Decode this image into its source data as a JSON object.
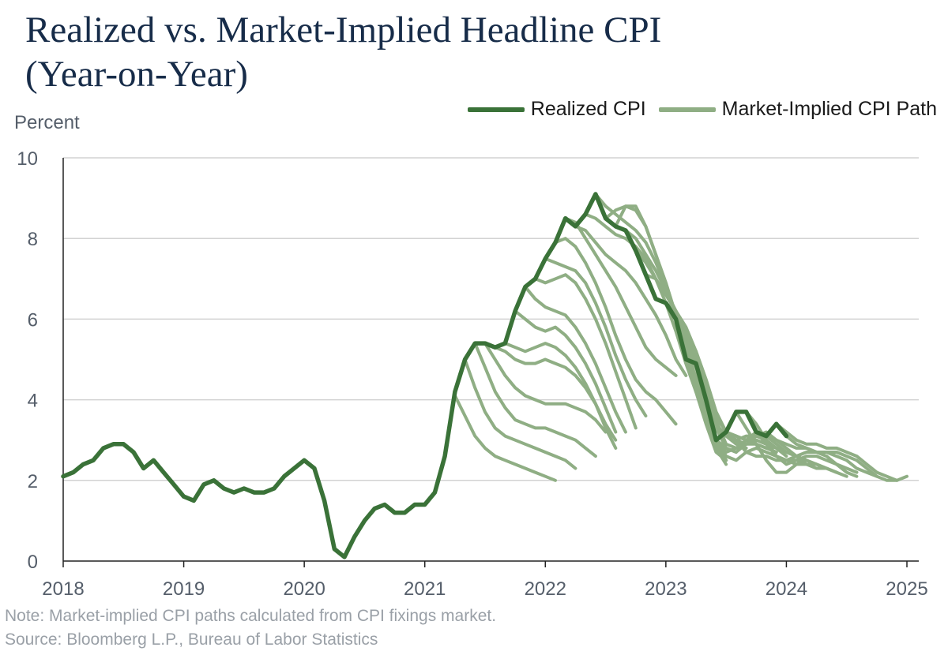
{
  "title_line1": "Realized vs. Market-Implied Headline CPI",
  "title_line2": "(Year-on-Year)",
  "colors": {
    "realized": "#3a7238",
    "implied": "#8fae84",
    "grid": "#d2d2d2",
    "title": "#172c49"
  },
  "legend": {
    "realized_label": "Realized CPI",
    "implied_label": "Market-Implied CPI Path"
  },
  "footer": {
    "note": "Note: Market-implied CPI paths calculated from CPI fixings market.",
    "source": "Source: Bloomberg L.P., Bureau of Labor Statistics"
  },
  "chart_data": {
    "type": "line",
    "title": "Realized vs. Market-Implied Headline CPI (Year-on-Year)",
    "ylabel": "Percent",
    "xlabel": "",
    "ylim": [
      0,
      10
    ],
    "yticks": [
      0,
      2,
      4,
      6,
      8,
      10
    ],
    "xlim": [
      2018.0,
      2025.1
    ],
    "xticks": [
      "2018",
      "2019",
      "2020",
      "2021",
      "2022",
      "2023",
      "2024",
      "2025"
    ],
    "grid": true,
    "legend_position": "top-right",
    "series": [
      {
        "name": "Realized CPI",
        "x_start": 2018.0,
        "step": 0.0833333,
        "values": [
          2.1,
          2.2,
          2.4,
          2.5,
          2.8,
          2.9,
          2.9,
          2.7,
          2.3,
          2.5,
          2.2,
          1.9,
          1.6,
          1.5,
          1.9,
          2.0,
          1.8,
          1.7,
          1.8,
          1.7,
          1.7,
          1.8,
          2.1,
          2.3,
          2.5,
          2.3,
          1.5,
          0.3,
          0.1,
          0.6,
          1.0,
          1.3,
          1.4,
          1.2,
          1.2,
          1.4,
          1.4,
          1.7,
          2.6,
          4.2,
          5.0,
          5.4,
          5.4,
          5.3,
          5.4,
          6.2,
          6.8,
          7.0,
          7.5,
          7.9,
          8.5,
          8.3,
          8.6,
          9.1,
          8.5,
          8.3,
          8.2,
          7.7,
          7.1,
          6.5,
          6.4,
          6.0,
          5.0,
          4.9,
          4.0,
          3.0,
          3.2,
          3.7,
          3.7,
          3.2,
          3.1,
          3.4,
          3.1
        ]
      }
    ],
    "implied_paths": [
      {
        "start": 2021.25,
        "values": [
          4.1,
          3.6,
          3.1,
          2.8,
          2.6,
          2.5,
          2.4,
          2.3,
          2.2,
          2.1,
          2.0
        ]
      },
      {
        "start": 2021.333,
        "values": [
          5.0,
          4.3,
          3.7,
          3.3,
          3.1,
          3.0,
          2.9,
          2.8,
          2.7,
          2.6,
          2.5,
          2.3
        ]
      },
      {
        "start": 2021.417,
        "values": [
          5.4,
          4.8,
          4.2,
          3.8,
          3.5,
          3.4,
          3.3,
          3.3,
          3.2,
          3.1,
          3.0,
          2.8,
          2.6
        ]
      },
      {
        "start": 2021.5,
        "values": [
          5.4,
          5.0,
          4.6,
          4.3,
          4.1,
          4.0,
          3.9,
          3.9,
          3.9,
          3.8,
          3.7,
          3.5,
          3.2
        ]
      },
      {
        "start": 2021.583,
        "values": [
          5.3,
          5.2,
          5.0,
          4.9,
          4.9,
          5.0,
          4.9,
          4.8,
          4.6,
          4.3,
          3.9,
          3.4,
          3.0
        ]
      },
      {
        "start": 2021.667,
        "values": [
          5.4,
          5.3,
          5.2,
          5.3,
          5.4,
          5.3,
          5.1,
          4.8,
          4.4,
          3.9,
          3.3,
          2.8
        ]
      },
      {
        "start": 2021.75,
        "values": [
          6.2,
          6.0,
          5.8,
          5.7,
          5.8,
          5.6,
          5.3,
          4.9,
          4.4,
          3.8,
          3.2
        ]
      },
      {
        "start": 2021.833,
        "values": [
          6.8,
          6.5,
          6.3,
          6.2,
          6.1,
          5.8,
          5.4,
          4.9,
          4.3,
          3.7,
          3.2
        ]
      },
      {
        "start": 2021.917,
        "values": [
          7.0,
          6.9,
          7.0,
          7.1,
          6.9,
          6.5,
          6.0,
          5.4,
          4.7,
          4.0,
          3.3
        ]
      },
      {
        "start": 2022.0,
        "values": [
          7.5,
          7.4,
          7.3,
          7.2,
          6.9,
          6.4,
          5.8,
          5.1,
          4.5,
          4.0,
          3.6
        ]
      },
      {
        "start": 2022.083,
        "values": [
          7.9,
          8.0,
          7.8,
          7.4,
          6.9,
          6.3,
          5.6,
          5.0,
          4.5,
          4.2,
          4.0,
          3.7,
          3.4
        ]
      },
      {
        "start": 2022.167,
        "values": [
          8.5,
          8.4,
          8.0,
          7.6,
          7.2,
          6.8,
          6.3,
          5.8,
          5.3,
          5.0,
          4.8,
          4.6
        ]
      },
      {
        "start": 2022.25,
        "values": [
          8.3,
          8.2,
          7.9,
          7.6,
          7.4,
          7.2,
          6.9,
          6.5,
          6.1,
          5.6,
          5.0,
          4.6
        ]
      },
      {
        "start": 2022.333,
        "values": [
          8.6,
          8.5,
          8.3,
          8.1,
          8.0,
          7.8,
          7.5,
          7.0,
          6.4,
          5.7,
          4.9,
          4.2,
          3.6
        ]
      },
      {
        "start": 2022.417,
        "values": [
          9.1,
          8.8,
          8.6,
          8.4,
          8.2,
          7.9,
          7.4,
          6.8,
          6.0,
          5.2,
          4.4,
          3.6,
          2.9,
          2.5
        ]
      },
      {
        "start": 2022.5,
        "values": [
          8.5,
          8.7,
          8.8,
          8.7,
          8.3,
          7.6,
          6.9,
          6.1,
          5.2,
          4.4,
          3.5,
          2.8,
          2.4
        ]
      },
      {
        "start": 2022.583,
        "values": [
          8.3,
          8.8,
          8.8,
          8.3,
          7.6,
          6.9,
          6.1,
          5.2,
          4.2,
          3.4,
          2.7,
          2.5
        ]
      },
      {
        "start": 2022.667,
        "values": [
          8.2,
          8.0,
          7.6,
          7.2,
          6.7,
          6.2,
          5.4,
          4.5,
          3.6,
          3.0,
          2.8,
          2.7
        ]
      },
      {
        "start": 2022.75,
        "values": [
          7.7,
          7.4,
          7.0,
          6.6,
          6.2,
          5.6,
          4.8,
          4.0,
          3.4,
          3.1,
          2.9,
          2.8
        ]
      },
      {
        "start": 2022.833,
        "values": [
          7.1,
          7.0,
          6.6,
          6.2,
          5.8,
          5.2,
          4.4,
          3.6,
          3.2,
          3.0,
          2.9,
          2.9,
          2.8
        ]
      },
      {
        "start": 2022.917,
        "values": [
          6.5,
          6.4,
          6.1,
          5.7,
          5.2,
          4.5,
          3.7,
          3.2,
          3.1,
          3.0,
          2.9,
          2.8,
          2.7
        ]
      },
      {
        "start": 2023.0,
        "values": [
          6.4,
          6.2,
          5.8,
          5.2,
          4.4,
          3.6,
          3.2,
          3.1,
          3.0,
          3.0,
          2.9,
          2.8
        ]
      },
      {
        "start": 2023.083,
        "values": [
          6.0,
          5.6,
          5.0,
          4.2,
          3.4,
          3.1,
          3.0,
          3.1,
          3.1,
          3.0,
          2.8,
          2.6
        ]
      },
      {
        "start": 2023.167,
        "values": [
          5.0,
          4.6,
          3.8,
          3.0,
          2.7,
          2.8,
          3.0,
          3.2,
          3.1,
          2.9,
          2.7,
          2.6,
          2.5
        ]
      },
      {
        "start": 2023.25,
        "values": [
          4.9,
          4.3,
          3.5,
          2.9,
          2.8,
          2.9,
          3.1,
          3.2,
          3.0,
          2.8,
          2.6,
          2.4
        ]
      },
      {
        "start": 2023.333,
        "values": [
          4.0,
          3.3,
          2.8,
          2.7,
          2.9,
          3.0,
          2.9,
          2.8,
          2.7,
          2.6,
          2.5,
          2.4
        ]
      },
      {
        "start": 2023.417,
        "values": [
          3.0,
          2.6,
          2.5,
          2.7,
          2.8,
          2.7,
          2.6,
          2.5,
          2.5,
          2.4,
          2.4,
          2.3
        ]
      },
      {
        "start": 2023.5,
        "values": [
          3.2,
          3.0,
          2.7,
          2.6,
          2.6,
          2.5,
          2.5,
          2.4,
          2.4,
          2.3,
          2.3,
          2.2
        ]
      },
      {
        "start": 2023.583,
        "values": [
          3.7,
          3.3,
          2.9,
          2.5,
          2.2,
          2.2,
          2.4,
          2.5,
          2.4,
          2.3,
          2.2,
          2.1
        ]
      },
      {
        "start": 2023.667,
        "values": [
          3.7,
          3.4,
          3.0,
          2.6,
          2.4,
          2.5,
          2.6,
          2.6,
          2.5,
          2.4,
          2.3,
          2.2
        ]
      },
      {
        "start": 2023.75,
        "values": [
          3.2,
          2.9,
          2.6,
          2.5,
          2.6,
          2.7,
          2.7,
          2.6,
          2.4,
          2.2,
          2.1
        ]
      },
      {
        "start": 2023.833,
        "values": [
          3.1,
          3.0,
          2.9,
          2.8,
          2.8,
          2.7,
          2.7,
          2.6,
          2.5,
          2.3,
          2.2,
          2.1
        ]
      },
      {
        "start": 2023.917,
        "values": [
          3.4,
          3.2,
          3.0,
          2.9,
          2.9,
          2.8,
          2.8,
          2.7,
          2.6,
          2.4,
          2.2,
          2.1,
          2.0
        ]
      },
      {
        "start": 2024.0,
        "values": [
          3.1,
          2.9,
          2.8,
          2.7,
          2.7,
          2.7,
          2.6,
          2.5,
          2.3,
          2.1,
          2.0,
          2.0,
          2.1
        ]
      }
    ]
  }
}
